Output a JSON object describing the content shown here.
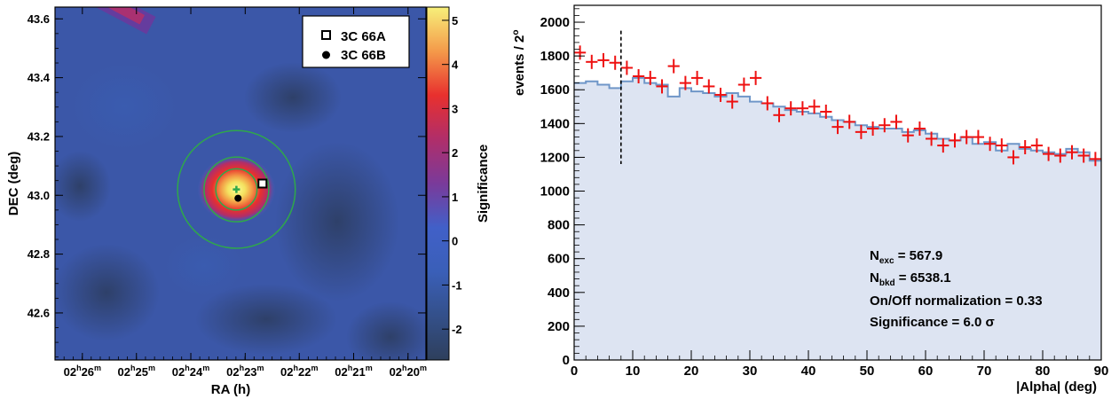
{
  "chart_data": [
    {
      "type": "heatmap",
      "xlabel": "RA (h)",
      "ylabel": "DEC (deg)",
      "colorbar_label": "Significance",
      "xlim_hours": [
        2.4417,
        2.3278
      ],
      "ylim": [
        42.44,
        43.64
      ],
      "x_ticks": [
        {
          "h": "02",
          "m": "26",
          "value": 2.4333
        },
        {
          "h": "02",
          "m": "25",
          "value": 2.4167
        },
        {
          "h": "02",
          "m": "24",
          "value": 2.4
        },
        {
          "h": "02",
          "m": "23",
          "value": 2.3833
        },
        {
          "h": "02",
          "m": "22",
          "value": 2.3667
        },
        {
          "h": "02",
          "m": "21",
          "value": 2.35
        },
        {
          "h": "02",
          "m": "20",
          "value": 2.3333
        }
      ],
      "y_ticks": [
        "42.6",
        "42.8",
        "43.0",
        "43.2",
        "43.4",
        "43.6"
      ],
      "colorbar_ticks": [
        "-2",
        "-1",
        "0",
        "1",
        "2",
        "3",
        "4",
        "5"
      ],
      "colorbar_range": [
        -2.7,
        5.3
      ],
      "colorbar_stops": [
        "#2e3f5c",
        "#34508a",
        "#3a5fb8",
        "#4160c8",
        "#7a3a9a",
        "#b02e6a",
        "#e8302e",
        "#f49a4a",
        "#f7f07a"
      ],
      "hotspot": {
        "ra_h": 2.386,
        "dec": 43.02,
        "peak_sigma": 5.3
      },
      "secondary_hotspot": {
        "ra_h": 2.42,
        "dec": 43.62,
        "sigma": 3.4
      },
      "circles_deg": [
        0.07,
        0.11,
        0.2
      ],
      "circle_color": "#2fa84a",
      "sources": [
        {
          "name": "3C 66A",
          "marker": "open-square",
          "ra_h": 2.378,
          "dec": 43.04
        },
        {
          "name": "3C 66B",
          "marker": "filled-circle",
          "ra_h": 2.3855,
          "dec": 42.99
        }
      ],
      "legend": [
        "3C 66A",
        "3C 66B"
      ],
      "legend_position": "top-right"
    },
    {
      "type": "histogram",
      "xlabel": "|Alpha| (deg)",
      "ylabel_main": "events / 2",
      "ylabel_sup": "o",
      "xlim": [
        0,
        90
      ],
      "ylim": [
        0,
        2100
      ],
      "x_ticks": [
        "0",
        "10",
        "20",
        "30",
        "40",
        "50",
        "60",
        "70",
        "80",
        "90"
      ],
      "y_ticks": [
        "0",
        "200",
        "400",
        "600",
        "800",
        "1000",
        "1200",
        "1400",
        "1600",
        "1800",
        "2000"
      ],
      "bin_width": 2,
      "cut_line_x": 8,
      "on_color": "#ee1111",
      "off_color": "#6f96c8",
      "off_fill": "#dde4f2",
      "on_counts": [
        1820,
        1765,
        1775,
        1760,
        1730,
        1680,
        1670,
        1620,
        1740,
        1640,
        1670,
        1620,
        1570,
        1530,
        1630,
        1670,
        1520,
        1450,
        1490,
        1490,
        1500,
        1470,
        1380,
        1410,
        1350,
        1370,
        1390,
        1410,
        1330,
        1370,
        1310,
        1270,
        1300,
        1320,
        1320,
        1280,
        1270,
        1200,
        1260,
        1270,
        1220,
        1210,
        1230,
        1210,
        1190
      ],
      "off_counts": [
        1640,
        1650,
        1630,
        1610,
        1650,
        1670,
        1640,
        1630,
        1560,
        1610,
        1590,
        1580,
        1560,
        1580,
        1560,
        1530,
        1520,
        1500,
        1480,
        1470,
        1460,
        1440,
        1420,
        1410,
        1390,
        1380,
        1370,
        1370,
        1350,
        1360,
        1340,
        1310,
        1300,
        1320,
        1280,
        1290,
        1240,
        1280,
        1250,
        1240,
        1230,
        1220,
        1250,
        1230,
        1180
      ],
      "stats": [
        {
          "symbol": "N",
          "sub": "exc",
          "text": " = 567.9"
        },
        {
          "symbol": "N",
          "sub": "bkd",
          "text": " = 6538.1"
        },
        {
          "symbol": "",
          "sub": "",
          "text": "On/Off normalization = 0.33"
        },
        {
          "symbol": "",
          "sub": "",
          "text": "Significance = 6.0 σ"
        }
      ]
    }
  ]
}
